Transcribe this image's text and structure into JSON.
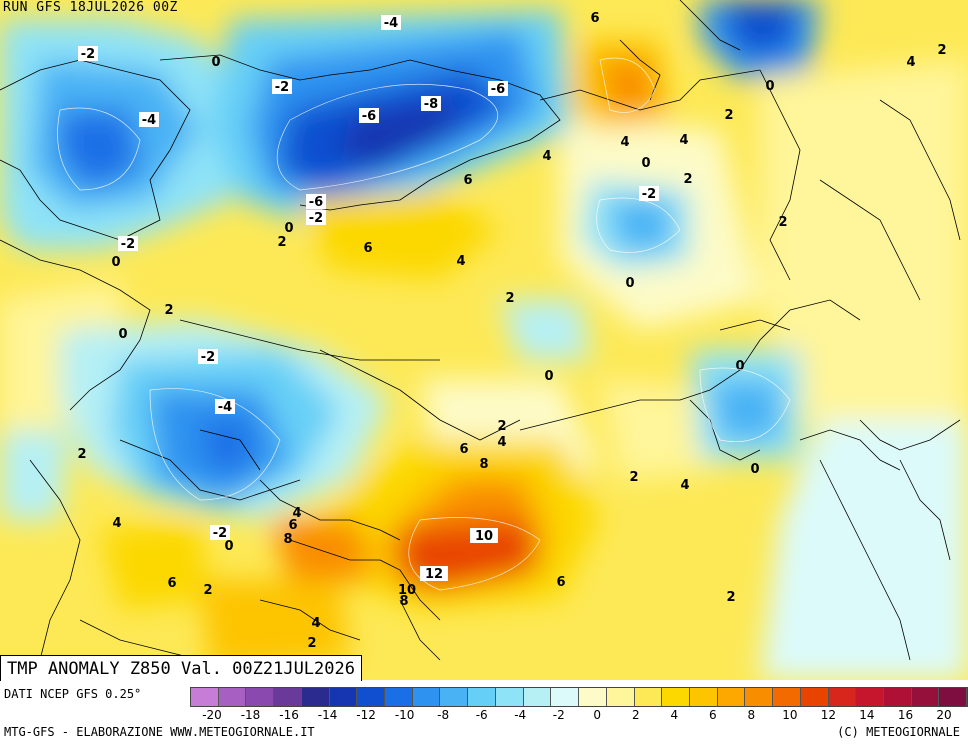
{
  "header": {
    "run_label": "RUN GFS 18JUL2026 00Z",
    "field_label": "TMP ANOMALY Z850 Val. 00Z21JUL2026"
  },
  "footer": {
    "data_source": "DATI NCEP GFS 0.25°",
    "credits": "MTG-GFS - ELABORAZIONE WWW.METEOGIORNALE.IT",
    "copyright": "(C) METEOGIORNALE"
  },
  "legend": {
    "ticks": [
      "-20",
      "-18",
      "-16",
      "-14",
      "-12",
      "-10",
      "-8",
      "-6",
      "-4",
      "-2",
      "0",
      "2",
      "4",
      "6",
      "8",
      "10",
      "12",
      "14",
      "16",
      "20"
    ],
    "colors": [
      "#c77dd7",
      "#a75fc2",
      "#8a49ae",
      "#6a3a9a",
      "#2b2a8e",
      "#1536b0",
      "#0f4fd0",
      "#1b6fe6",
      "#2e93f0",
      "#48b2f5",
      "#66cff7",
      "#8fe3f7",
      "#b6f0f5",
      "#dcfafa",
      "#fdfbc8",
      "#fff59a",
      "#fde956",
      "#fcd800",
      "#fdc400",
      "#fca800",
      "#f98d00",
      "#f26a00",
      "#e84400",
      "#d8261c",
      "#c5162d",
      "#ae1135",
      "#96103c",
      "#7e0e40"
    ],
    "colors_note": "Anomaly color scale from deep purple (cold) through blue, cyan, pale yellow, yellow, orange to red and crimson (warm)."
  },
  "map": {
    "contour_labels": [
      {
        "text": "-4"
      },
      {
        "text": "6"
      },
      {
        "text": "4"
      },
      {
        "text": "2"
      },
      {
        "text": "-2"
      },
      {
        "text": "0"
      },
      {
        "text": "-2"
      },
      {
        "text": "-6"
      },
      {
        "text": "-8"
      },
      {
        "text": "-4"
      },
      {
        "text": "-6"
      },
      {
        "text": "4"
      },
      {
        "text": "4"
      },
      {
        "text": "2"
      },
      {
        "text": "0"
      },
      {
        "text": "2"
      },
      {
        "text": "4"
      },
      {
        "text": "6"
      },
      {
        "text": "-6"
      },
      {
        "text": "-2"
      },
      {
        "text": "0"
      },
      {
        "text": "-2"
      },
      {
        "text": "2"
      },
      {
        "text": "-2"
      },
      {
        "text": "6"
      },
      {
        "text": "4"
      },
      {
        "text": "2"
      },
      {
        "text": "0"
      },
      {
        "text": "0"
      },
      {
        "text": "2"
      },
      {
        "text": "0"
      },
      {
        "text": "2"
      },
      {
        "text": "-2"
      },
      {
        "text": "0"
      },
      {
        "text": "0"
      },
      {
        "text": "-4"
      },
      {
        "text": "2"
      },
      {
        "text": "2"
      },
      {
        "text": "4"
      },
      {
        "text": "6"
      },
      {
        "text": "8"
      },
      {
        "text": "0"
      },
      {
        "text": "2"
      },
      {
        "text": "4"
      },
      {
        "text": "0"
      },
      {
        "text": "4"
      },
      {
        "text": "-2"
      },
      {
        "text": "0"
      },
      {
        "text": "8"
      },
      {
        "text": "4"
      },
      {
        "text": "6"
      },
      {
        "text": "10"
      },
      {
        "text": "12"
      },
      {
        "text": "6"
      },
      {
        "text": "10"
      },
      {
        "text": "8"
      },
      {
        "text": "6"
      },
      {
        "text": "2"
      },
      {
        "text": "2"
      },
      {
        "text": "4"
      },
      {
        "text": "2"
      }
    ]
  }
}
